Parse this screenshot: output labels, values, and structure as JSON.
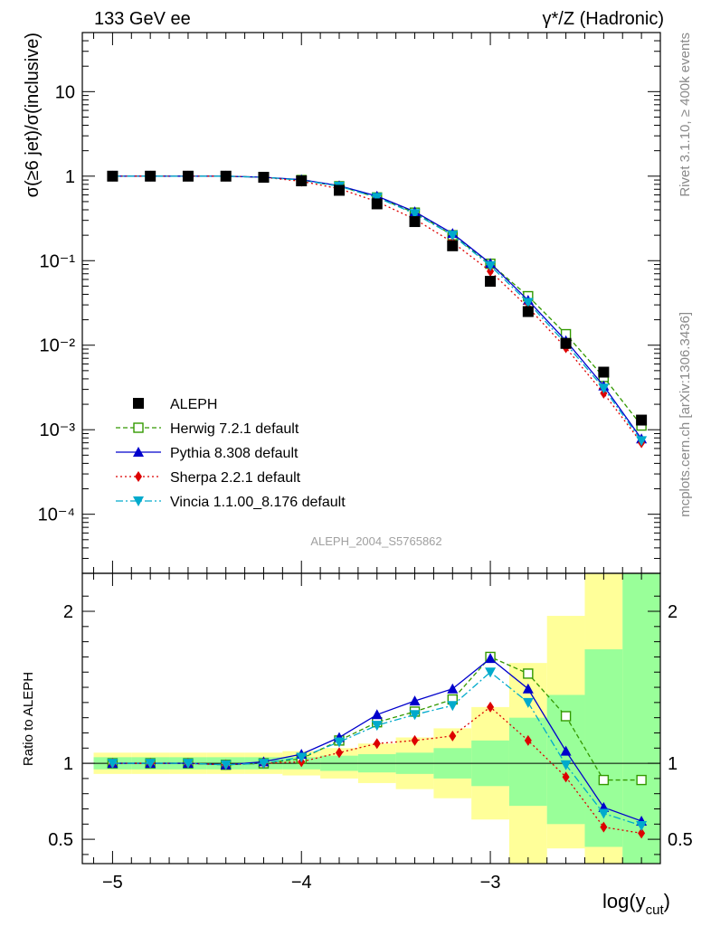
{
  "header": {
    "left": "133 GeV ee",
    "right": "γ*/Z (Hadronic)"
  },
  "side_labels": {
    "rivet": "Rivet 3.1.10, ≥ 400k events",
    "mcplots": "mcplots.cern.ch [arXiv:1306.3436]"
  },
  "watermark": "ALEPH_2004_S5765862",
  "chart_data": [
    {
      "type": "line",
      "panel": "main",
      "ylabel": "σ(≥6 jet)/σ(inclusive)",
      "yscale": "log",
      "xlim": [
        -5.16,
        -2.1
      ],
      "ylim": [
        2e-05,
        50
      ],
      "y_ticks": [
        {
          "value": 10,
          "label": "10"
        },
        {
          "value": 1,
          "label": "1"
        },
        {
          "value": 0.1,
          "label": "10⁻¹"
        },
        {
          "value": 0.01,
          "label": "10⁻²"
        },
        {
          "value": 0.001,
          "label": "10⁻³"
        },
        {
          "value": 0.0001,
          "label": "10⁻⁴"
        }
      ],
      "x": [
        -5.0,
        -4.8,
        -4.6,
        -4.4,
        -4.2,
        -4.0,
        -3.8,
        -3.6,
        -3.4,
        -3.2,
        -3.0,
        -2.8,
        -2.6,
        -2.4,
        -2.2
      ],
      "series": [
        {
          "name": "ALEPH",
          "kind": "data",
          "color": "#000000",
          "marker": "square-filled",
          "values": [
            1.0,
            1.0,
            1.0,
            1.0,
            0.97,
            0.88,
            0.68,
            0.47,
            0.29,
            0.15,
            0.057,
            0.025,
            0.0105,
            0.0048,
            0.0013
          ]
        },
        {
          "name": "Herwig 7.2.1 default",
          "color": "#339900",
          "marker": "square-open",
          "dash": "5,3",
          "values": [
            1.0,
            1.0,
            1.0,
            1.0,
            0.97,
            0.9,
            0.76,
            0.56,
            0.37,
            0.2,
            0.092,
            0.038,
            0.0135,
            0.0042,
            0.00112
          ]
        },
        {
          "name": "Pythia 8.308 default",
          "color": "#0000cc",
          "marker": "triangle-up",
          "dash": "",
          "values": [
            1.0,
            1.0,
            1.0,
            1.0,
            0.97,
            0.91,
            0.77,
            0.58,
            0.38,
            0.21,
            0.093,
            0.034,
            0.0113,
            0.0033,
            0.00078
          ]
        },
        {
          "name": "Sherpa 2.2.1 default",
          "color": "#dd0000",
          "marker": "diamond",
          "dash": "2,3",
          "values": [
            1.0,
            1.0,
            1.0,
            1.0,
            0.97,
            0.87,
            0.71,
            0.5,
            0.31,
            0.165,
            0.075,
            0.028,
            0.0093,
            0.0027,
            0.0007
          ]
        },
        {
          "name": "Vincia 1.1.00_8.176 default",
          "color": "#00aacc",
          "marker": "triangle-down",
          "dash": "8,3,2,3",
          "values": [
            1.0,
            1.0,
            1.0,
            1.0,
            0.97,
            0.9,
            0.76,
            0.56,
            0.36,
            0.2,
            0.087,
            0.032,
            0.0104,
            0.0031,
            0.00074
          ]
        }
      ]
    },
    {
      "type": "line",
      "panel": "ratio",
      "ylabel": "Ratio to ALEPH",
      "xlabel": "log(y",
      "xlabel_sub": "cut",
      "xlabel_close": ")",
      "xlim": [
        -5.16,
        -2.1
      ],
      "ylim": [
        0.34,
        2.25
      ],
      "x_ticks": [
        {
          "value": -5,
          "label": "−5"
        },
        {
          "value": -4,
          "label": "−4"
        },
        {
          "value": -3,
          "label": "−3"
        }
      ],
      "y_ticks": [
        {
          "value": 0.5,
          "label": "0.5"
        },
        {
          "value": 1,
          "label": "1"
        },
        {
          "value": 2,
          "label": "2"
        }
      ],
      "band_edges": [
        -5.1,
        -4.9,
        -4.7,
        -4.5,
        -4.3,
        -4.1,
        -3.9,
        -3.7,
        -3.5,
        -3.3,
        -3.1,
        -2.9,
        -2.7,
        -2.5,
        -2.3,
        -2.1
      ],
      "band_inner": {
        "color": "#99ff99",
        "low": [
          0.96,
          0.96,
          0.96,
          0.96,
          0.96,
          0.96,
          0.95,
          0.94,
          0.93,
          0.9,
          0.85,
          0.72,
          0.6,
          0.45,
          0.34
        ],
        "high": [
          1.04,
          1.04,
          1.04,
          1.04,
          1.04,
          1.04,
          1.05,
          1.06,
          1.07,
          1.1,
          1.15,
          1.3,
          1.45,
          1.75,
          2.25
        ]
      },
      "band_outer": {
        "color": "#ffff99",
        "low": [
          0.93,
          0.93,
          0.93,
          0.93,
          0.93,
          0.92,
          0.9,
          0.87,
          0.83,
          0.77,
          0.63,
          0.34,
          0.44,
          0.34,
          0.34
        ],
        "high": [
          1.07,
          1.07,
          1.07,
          1.07,
          1.07,
          1.08,
          1.1,
          1.13,
          1.17,
          1.23,
          1.37,
          1.66,
          1.97,
          2.25,
          2.25
        ]
      },
      "x": [
        -5.0,
        -4.8,
        -4.6,
        -4.4,
        -4.2,
        -4.0,
        -3.8,
        -3.6,
        -3.4,
        -3.2,
        -3.0,
        -2.8,
        -2.6,
        -2.4,
        -2.2
      ],
      "series": [
        {
          "name": "Herwig 7.2.1 default",
          "color": "#339900",
          "marker": "square-open",
          "dash": "5,3",
          "values": [
            1.0,
            1.0,
            1.0,
            0.99,
            1.0,
            1.03,
            1.15,
            1.27,
            1.34,
            1.42,
            1.7,
            1.59,
            1.31,
            0.89,
            0.89
          ]
        },
        {
          "name": "Pythia 8.308 default",
          "color": "#0000cc",
          "marker": "triangle-up",
          "dash": "",
          "values": [
            1.0,
            1.0,
            1.0,
            0.99,
            1.01,
            1.06,
            1.17,
            1.32,
            1.41,
            1.49,
            1.69,
            1.49,
            1.08,
            0.71,
            0.62
          ]
        },
        {
          "name": "Sherpa 2.2.1 default",
          "color": "#dd0000",
          "marker": "diamond",
          "dash": "2,3",
          "values": [
            1.0,
            1.0,
            1.0,
            0.99,
            1.0,
            1.01,
            1.07,
            1.13,
            1.15,
            1.18,
            1.37,
            1.15,
            0.91,
            0.58,
            0.54
          ]
        },
        {
          "name": "Vincia 1.1.00_8.176 default",
          "color": "#00aacc",
          "marker": "triangle-down",
          "dash": "8,3,2,3",
          "values": [
            1.0,
            1.0,
            1.0,
            0.99,
            1.0,
            1.04,
            1.14,
            1.25,
            1.32,
            1.38,
            1.6,
            1.4,
            0.99,
            0.67,
            0.59
          ]
        }
      ]
    }
  ]
}
